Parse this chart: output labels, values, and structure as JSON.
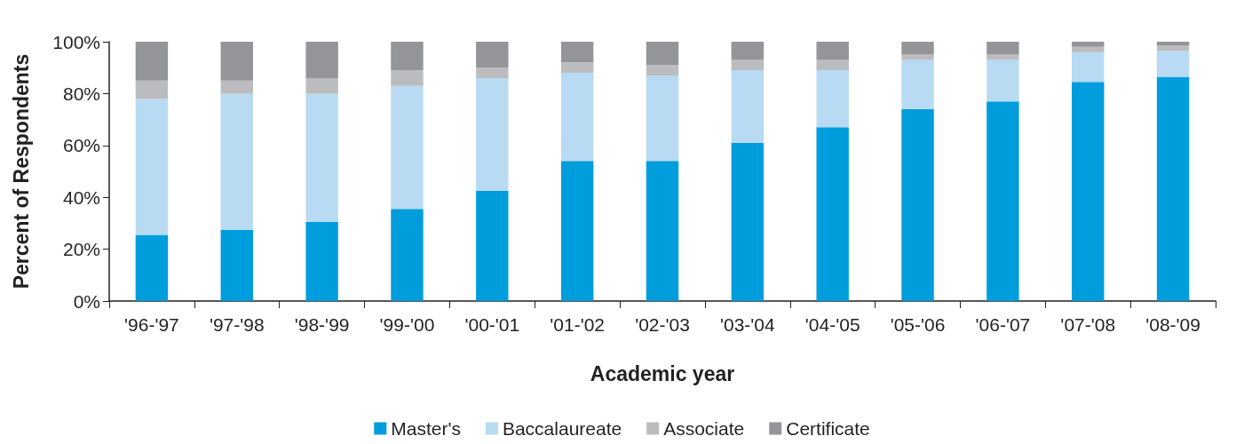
{
  "chart_data": {
    "type": "bar",
    "stacked": true,
    "xlabel": "Academic year",
    "ylabel": "Percent of Respondents",
    "categories": [
      "'96-'97",
      "'97-'98",
      "'98-'99",
      "'99-'00",
      "'00-'01",
      "'01-'02",
      "'02-'03",
      "'03-'04",
      "'04-'05",
      "'05-'06",
      "'06-'07",
      "'07-'08",
      "'08-'09"
    ],
    "series": [
      {
        "name": "Master's",
        "color": "#009ddc",
        "values": [
          25.5,
          27.5,
          30.5,
          35.5,
          42.5,
          54,
          54,
          61,
          67,
          74,
          77,
          84.5,
          86.5
        ]
      },
      {
        "name": "Baccalaureate",
        "color": "#b8daf2",
        "values": [
          52.5,
          52.5,
          49.5,
          47.5,
          43.5,
          34,
          33,
          28,
          22,
          19,
          16,
          11.5,
          10
        ]
      },
      {
        "name": "Associate",
        "color": "#bbbcbe",
        "values": [
          7,
          5,
          6,
          6,
          4,
          4,
          4,
          4,
          4,
          2,
          2,
          2,
          2
        ]
      },
      {
        "name": "Certificate",
        "color": "#939598",
        "values": [
          15,
          15,
          14,
          11,
          10,
          8,
          9,
          7,
          7,
          5,
          5,
          2,
          1.5
        ]
      }
    ],
    "ylim": [
      0,
      100
    ],
    "yticks": [
      {
        "value": 0,
        "label": "0%"
      },
      {
        "value": 20,
        "label": "20%"
      },
      {
        "value": 40,
        "label": "40%"
      },
      {
        "value": 60,
        "label": "60%"
      },
      {
        "value": 80,
        "label": "80%"
      },
      {
        "value": 100,
        "label": "100%"
      }
    ],
    "grid": false,
    "legend": "bottom"
  }
}
